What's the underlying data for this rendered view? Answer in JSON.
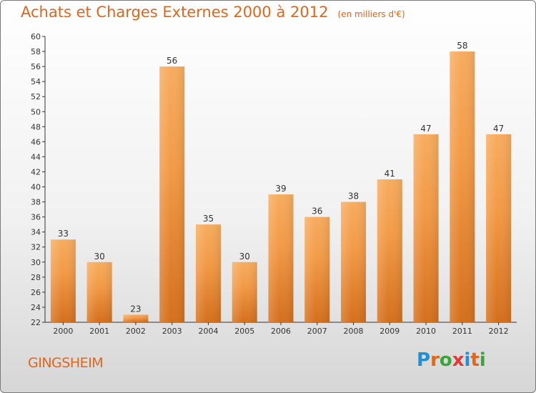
{
  "header": {
    "title": "Achats et Charges Externes 2000 à 2012",
    "unit": "(en milliers d'€)"
  },
  "footer": {
    "commune": "GINGSHEIM",
    "logo_letters": [
      "P",
      "r",
      "o",
      "x",
      "i",
      "t",
      "i"
    ],
    "logo_colors": [
      "#1f8fd6",
      "#e0661a",
      "#3aa53a",
      "#e03a3a",
      "#1f8fd6",
      "#e0661a",
      "#3aa53a"
    ]
  },
  "chart_data": {
    "type": "bar",
    "title": "Achats et Charges Externes 2000 à 2012",
    "categories": [
      "2000",
      "2001",
      "2002",
      "2003",
      "2004",
      "2005",
      "2006",
      "2007",
      "2008",
      "2009",
      "2010",
      "2011",
      "2012"
    ],
    "values": [
      33,
      30,
      23,
      56,
      35,
      30,
      39,
      36,
      38,
      41,
      47,
      58,
      47
    ],
    "ylim": [
      22,
      60
    ],
    "yticks": [
      22,
      24,
      26,
      28,
      30,
      32,
      34,
      36,
      38,
      40,
      42,
      44,
      46,
      48,
      50,
      52,
      54,
      56,
      58,
      60
    ],
    "xlabel": "",
    "ylabel": "",
    "grid": false,
    "legend": "none",
    "bar_color": "#f29a46",
    "bar_color_light": "#f7ac5e",
    "bar_color_dark": "#d46f1c"
  }
}
